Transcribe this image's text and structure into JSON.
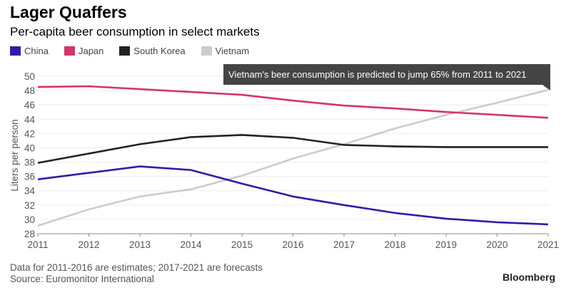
{
  "header": {
    "title": "Lager Quaffers",
    "subtitle": "Per-capita beer consumption in select markets"
  },
  "footer": {
    "note": "Data for 2011-2016 are estimates; 2017-2021 are forecasts",
    "source": "Source: Euromonitor International",
    "brand": "Bloomberg"
  },
  "chart_data": {
    "type": "line",
    "title": "Lager Quaffers",
    "subtitle": "Per-capita beer consumption in select markets",
    "xlabel": "",
    "ylabel": "Liters per person",
    "x": [
      2011,
      2012,
      2013,
      2014,
      2015,
      2016,
      2017,
      2018,
      2019,
      2020,
      2021
    ],
    "ylim": [
      28,
      50
    ],
    "yticks": [
      28,
      30,
      32,
      34,
      36,
      38,
      40,
      42,
      44,
      46,
      48,
      50
    ],
    "grid": true,
    "legend": "top-left",
    "series": [
      {
        "name": "China",
        "color": "#2b1fa8",
        "values": [
          35.6,
          36.5,
          37.4,
          36.9,
          35.0,
          33.2,
          32.0,
          30.9,
          30.1,
          29.6,
          29.3
        ]
      },
      {
        "name": "Japan",
        "color": "#d6336c",
        "values": [
          48.5,
          48.6,
          48.2,
          47.8,
          47.4,
          46.6,
          45.9,
          45.5,
          45.0,
          44.6,
          44.2
        ]
      },
      {
        "name": "South Korea",
        "color": "#222222",
        "values": [
          37.9,
          39.2,
          40.5,
          41.5,
          41.8,
          41.4,
          40.4,
          40.2,
          40.1,
          40.1,
          40.1
        ]
      },
      {
        "name": "Vietnam",
        "color": "#cccccc",
        "values": [
          29.1,
          31.4,
          33.2,
          34.2,
          36.1,
          38.5,
          40.5,
          42.7,
          44.6,
          46.3,
          48.1
        ]
      }
    ],
    "annotation": {
      "text": "Vietnam's beer consumption is predicted to jump 65% from 2011 to 2021",
      "series": "Vietnam",
      "x": 2021
    }
  }
}
